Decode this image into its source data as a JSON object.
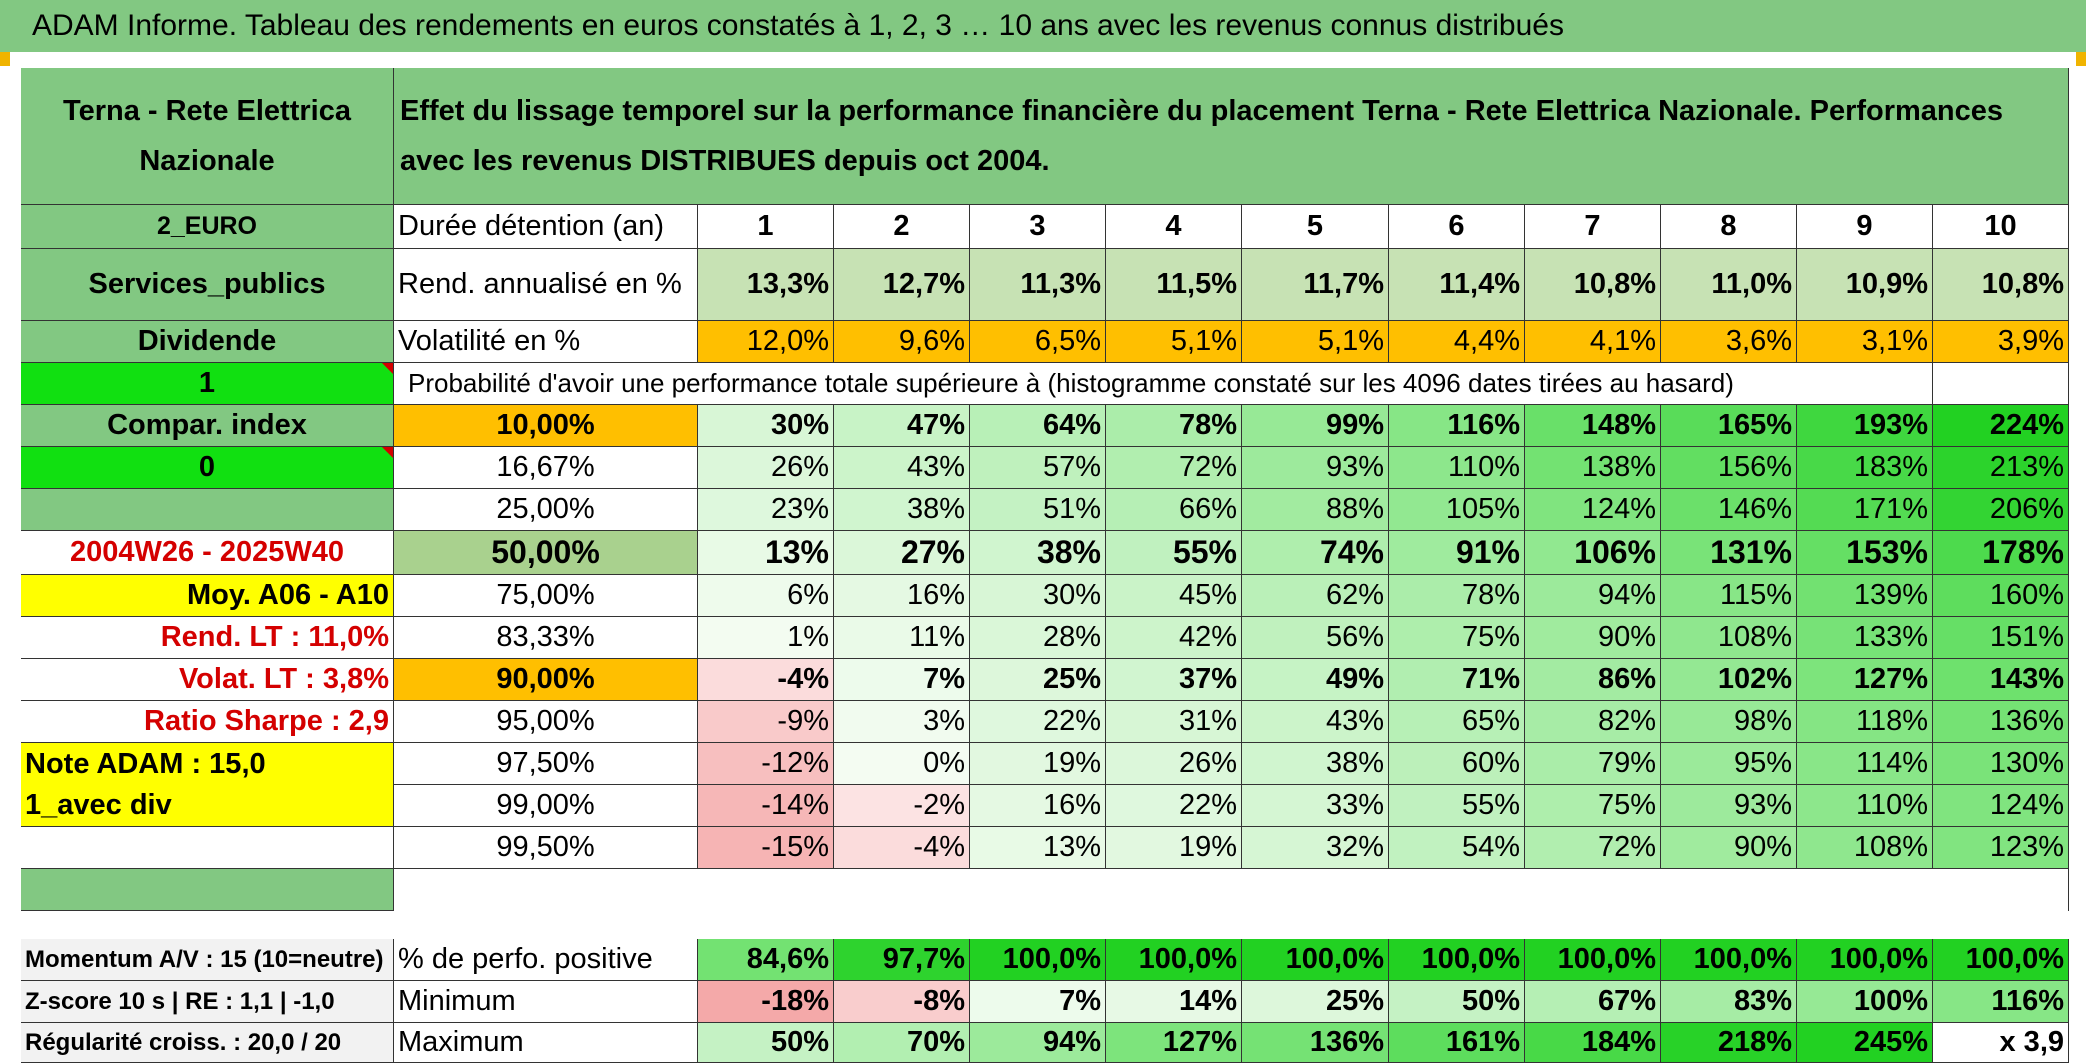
{
  "title": "ADAM Informe. Tableau des rendements en euros constatés à 1, 2, 3 … 10 ans avec les revenus connus distribués",
  "fund_name": "Terna - Rete Elettrica Nazionale",
  "description": "Effet du lissage temporel sur la performance financière du placement Terna - Rete Elettrica Nazionale. Performances avec les revenus DISTRIBUES depuis oct 2004.",
  "left_panel": {
    "currency": "2_EURO",
    "sector": "Services_publics",
    "income_type": "Dividende",
    "input_1": "1",
    "compar_index": "Compar. index",
    "input_0": "0",
    "period": "2004W26 - 2025W40",
    "moy": "Moy. A06 - A10",
    "rend_lt": "Rend. LT :   11,0%",
    "volat_lt": "Volat. LT :   3,8%",
    "sharpe": "Ratio Sharpe :    2,9",
    "note": "Note ADAM : 15,0",
    "avec_div": "1_avec div",
    "momentum": "Momentum A/V : 15 (10=neutre)",
    "zscore": "Z-score 10 s | RE : 1,1 | -1,0",
    "regularite": "Régularité croiss. : 20,0 / 20"
  },
  "headers": {
    "duree": "Durée détention (an)",
    "years": [
      "1",
      "2",
      "3",
      "4",
      "5",
      "6",
      "7",
      "8",
      "9",
      "10"
    ],
    "rend": "Rend. annualisé en %",
    "vol": "Volatilité en %",
    "proba": "Probabilité d'avoir une performance totale supérieure à (histogramme constaté sur les 4096 dates tirées au hasard)"
  },
  "rend_values": [
    "13,3%",
    "12,7%",
    "11,3%",
    "11,5%",
    "11,7%",
    "11,4%",
    "10,8%",
    "11,0%",
    "10,9%",
    "10,8%"
  ],
  "vol_values": [
    "12,0%",
    "9,6%",
    "6,5%",
    "5,1%",
    "5,1%",
    "4,4%",
    "4,1%",
    "3,6%",
    "3,1%",
    "3,9%"
  ],
  "percentile_rows": [
    {
      "label": "10,00%",
      "values": [
        "30%",
        "47%",
        "64%",
        "78%",
        "99%",
        "116%",
        "148%",
        "165%",
        "193%",
        "224%"
      ]
    },
    {
      "label": "16,67%",
      "values": [
        "26%",
        "43%",
        "57%",
        "72%",
        "93%",
        "110%",
        "138%",
        "156%",
        "183%",
        "213%"
      ]
    },
    {
      "label": "25,00%",
      "values": [
        "23%",
        "38%",
        "51%",
        "66%",
        "88%",
        "105%",
        "124%",
        "146%",
        "171%",
        "206%"
      ]
    },
    {
      "label": "50,00%",
      "values": [
        "13%",
        "27%",
        "38%",
        "55%",
        "74%",
        "91%",
        "106%",
        "131%",
        "153%",
        "178%"
      ]
    },
    {
      "label": "75,00%",
      "values": [
        "6%",
        "16%",
        "30%",
        "45%",
        "62%",
        "78%",
        "94%",
        "115%",
        "139%",
        "160%"
      ]
    },
    {
      "label": "83,33%",
      "values": [
        "1%",
        "11%",
        "28%",
        "42%",
        "56%",
        "75%",
        "90%",
        "108%",
        "133%",
        "151%"
      ]
    },
    {
      "label": "90,00%",
      "values": [
        "-4%",
        "7%",
        "25%",
        "37%",
        "49%",
        "71%",
        "86%",
        "102%",
        "127%",
        "143%"
      ]
    },
    {
      "label": "95,00%",
      "values": [
        "-9%",
        "3%",
        "22%",
        "31%",
        "43%",
        "65%",
        "82%",
        "98%",
        "118%",
        "136%"
      ]
    },
    {
      "label": "97,50%",
      "values": [
        "-12%",
        "0%",
        "19%",
        "26%",
        "38%",
        "60%",
        "79%",
        "95%",
        "114%",
        "130%"
      ]
    },
    {
      "label": "99,00%",
      "values": [
        "-14%",
        "-2%",
        "16%",
        "22%",
        "33%",
        "55%",
        "75%",
        "93%",
        "110%",
        "124%"
      ]
    },
    {
      "label": "99,50%",
      "values": [
        "-15%",
        "-4%",
        "13%",
        "19%",
        "32%",
        "54%",
        "72%",
        "90%",
        "108%",
        "123%"
      ]
    }
  ],
  "summary_rows": [
    {
      "label": "% de perfo. positive",
      "values": [
        "84,6%",
        "97,7%",
        "100,0%",
        "100,0%",
        "100,0%",
        "100,0%",
        "100,0%",
        "100,0%",
        "100,0%",
        "100,0%"
      ]
    },
    {
      "label": "Minimum",
      "values": [
        "-18%",
        "-8%",
        "7%",
        "14%",
        "25%",
        "50%",
        "67%",
        "83%",
        "100%",
        "116%"
      ]
    },
    {
      "label": "Maximum",
      "values": [
        "50%",
        "70%",
        "94%",
        "127%",
        "136%",
        "161%",
        "184%",
        "218%",
        "245%",
        "x 3,9"
      ]
    }
  ],
  "colors": {
    "header_green": "#82c882",
    "lime": "#11e011",
    "yellow": "#ffff00",
    "orange": "#ffbf00",
    "sage": "#a9d18e",
    "return_green": "#c7e2b4",
    "positive_scale_max": "#22d122",
    "negative_scale_max": "#f4a9a9",
    "red_text": "#d40000"
  }
}
